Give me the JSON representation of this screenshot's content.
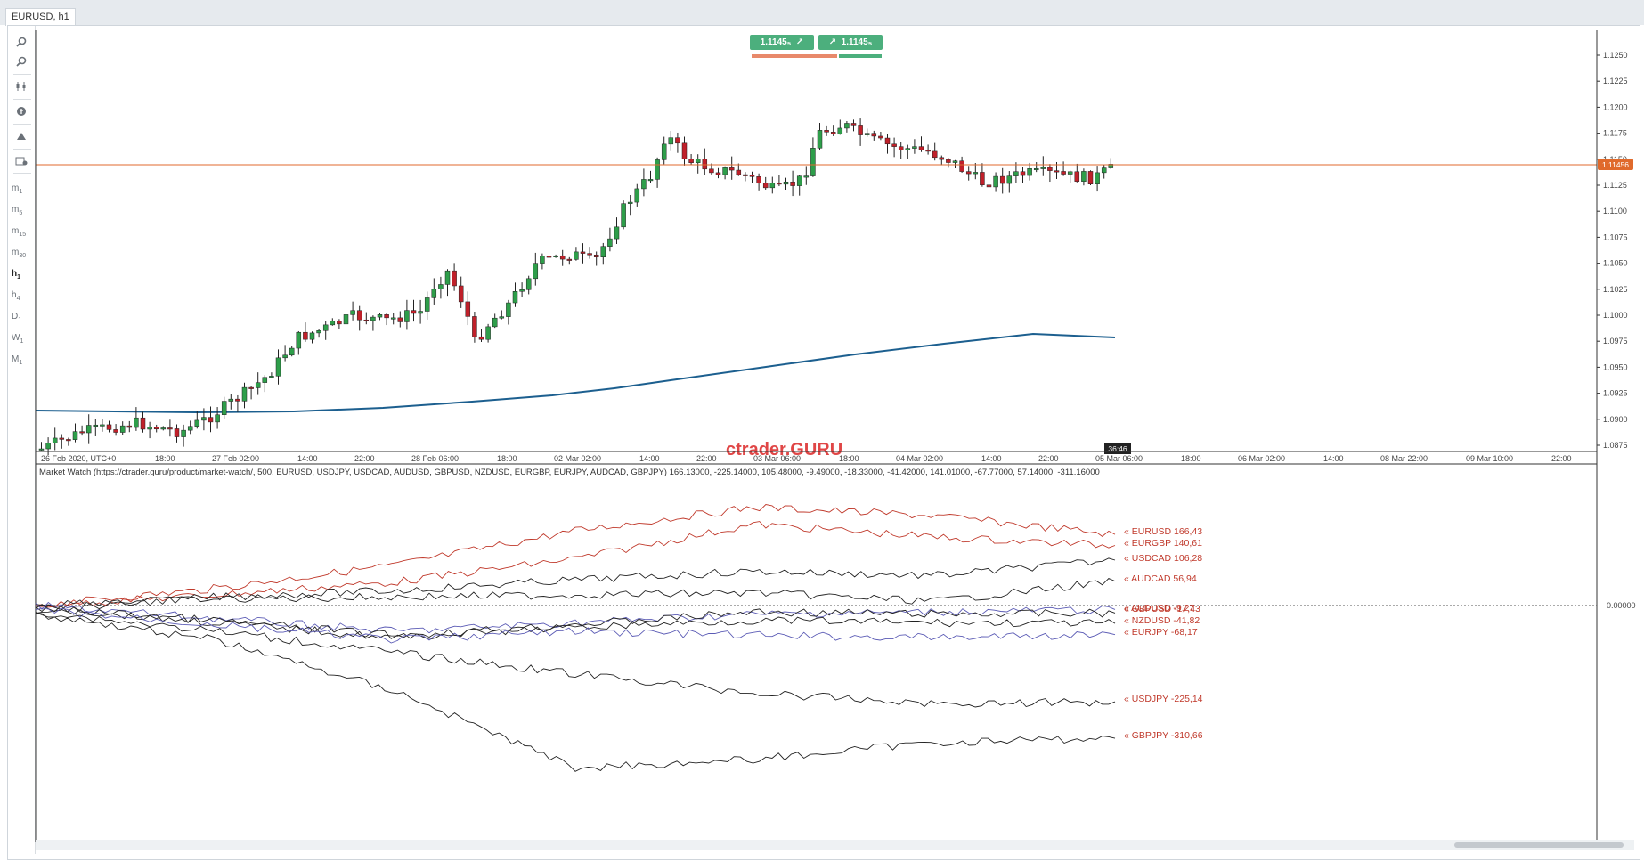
{
  "tab": {
    "title": "EURUSD, h1"
  },
  "toolbar": {
    "timeframes": [
      {
        "main": "m",
        "sub": "1"
      },
      {
        "main": "m",
        "sub": "5"
      },
      {
        "main": "m",
        "sub": "15"
      },
      {
        "main": "m",
        "sub": "30"
      },
      {
        "main": "h",
        "sub": "1"
      },
      {
        "main": "h",
        "sub": "4"
      },
      {
        "main": "D",
        "sub": "1"
      },
      {
        "main": "W",
        "sub": "1"
      },
      {
        "main": "M",
        "sub": "1"
      }
    ],
    "active_timeframe": "h1"
  },
  "trade": {
    "sell_price": "1.1145",
    "buy_price": "1.1145",
    "sell_color": "#e8896b",
    "buy_color": "#4caf7d"
  },
  "colors": {
    "up": "#2e9e4a",
    "down": "#c0202a",
    "ma": "#1c5f8f",
    "price_line": "#e06a2c",
    "legend": "#c0392b"
  },
  "current_price_label": "1.11456",
  "countdown": "36:46",
  "watermark": "ctrader.GURU",
  "main_chart": {
    "y_ticks": [
      "1.1250",
      "1.1225",
      "1.1200",
      "1.1175",
      "1.1150",
      "1.1125",
      "1.1100",
      "1.1075",
      "1.1050",
      "1.1025",
      "1.1000",
      "1.0975",
      "1.0950",
      "1.0925",
      "1.0900",
      "1.0875"
    ],
    "x_ticks": [
      "26 Feb 2020, UTC+0",
      "18:00",
      "27 Feb 02:00",
      "14:00",
      "22:00",
      "28 Feb 06:00",
      "18:00",
      "02 Mar 02:00",
      "14:00",
      "22:00",
      "03 Mar 06:00",
      "18:00",
      "04 Mar 02:00",
      "14:00",
      "22:00",
      "05 Mar 06:00",
      "18:00",
      "06 Mar 02:00",
      "14:00",
      "08 Mar 22:00",
      "09 Mar 10:00",
      "22:00"
    ]
  },
  "market_watch": {
    "caption": "Market Watch (https://ctrader.guru/product/market-watch/, 500, EURUSD, USDJPY, USDCAD, AUDUSD, GBPUSD, NZDUSD, EURGBP, EURJPY, AUDCAD, GBPJPY) 166.13000, -225.14000, 105.48000, -9.49000, -18.33000, -41.42000, 141.01000, -67.77000, 57.14000, -311.16000",
    "zero_label": "0.00000",
    "legend": [
      "« EURUSD 166,43",
      "« EURGBP 140,61",
      "« USDCAD 106,28",
      "« AUDCAD 56,94",
      "« AUDUSD -9,27",
      "« GBPUSD -17,43",
      "« NZDUSD -41,82",
      "« EURJPY -68,17",
      "« USDJPY -225,14",
      "« GBPJPY -310,66"
    ]
  },
  "chart_data": {
    "type": "line",
    "title": "Market Watch",
    "x": [
      "26 Feb 2020",
      "27 Feb",
      "28 Feb",
      "02 Mar",
      "03 Mar",
      "04 Mar",
      "05 Mar"
    ],
    "series": [
      {
        "name": "EURUSD",
        "values": [
          0,
          40,
          95,
          175,
          230,
          210,
          166.43
        ]
      },
      {
        "name": "EURGBP",
        "values": [
          0,
          25,
          55,
          110,
          190,
          160,
          140.61
        ]
      },
      {
        "name": "USDCAD",
        "values": [
          -10,
          20,
          35,
          60,
          80,
          70,
          106.28
        ]
      },
      {
        "name": "AUDCAD",
        "values": [
          5,
          15,
          20,
          25,
          30,
          10,
          56.94
        ]
      },
      {
        "name": "AUDUSD",
        "values": [
          0,
          -30,
          -60,
          -40,
          -20,
          -15,
          -9.27
        ]
      },
      {
        "name": "GBPUSD",
        "values": [
          -5,
          -35,
          -70,
          -45,
          -15,
          -20,
          -17.43
        ]
      },
      {
        "name": "NZDUSD",
        "values": [
          -5,
          -40,
          -75,
          -50,
          -35,
          -40,
          -41.82
        ]
      },
      {
        "name": "EURJPY",
        "values": [
          -10,
          -45,
          -80,
          -60,
          -70,
          -75,
          -68.17
        ]
      },
      {
        "name": "USDJPY",
        "values": [
          -15,
          -60,
          -110,
          -160,
          -205,
          -230,
          -225.14
        ]
      },
      {
        "name": "GBPJPY",
        "values": [
          -20,
          -80,
          -200,
          -380,
          -360,
          -320,
          -310.66
        ]
      }
    ]
  }
}
